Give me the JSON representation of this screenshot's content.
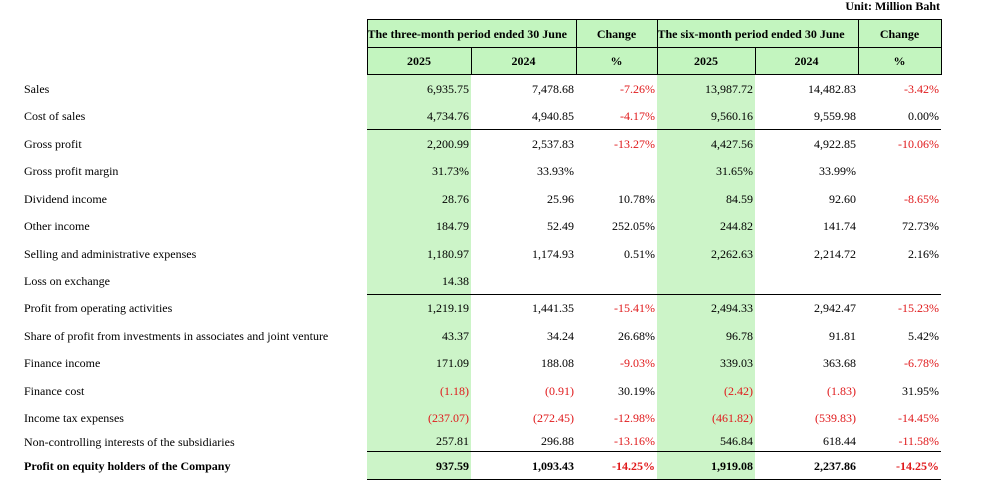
{
  "unit": "Unit: Million Baht",
  "header": {
    "three_month": "The three-month period ended 30 June",
    "six_month": "The six-month period ended 30 June",
    "change": "Change",
    "y1": "2025",
    "y2": "2024",
    "pct": "%"
  },
  "rows": [
    {
      "label": "Sales",
      "v": [
        "6,935.75",
        "7,478.68",
        "-7.26%",
        "13,987.72",
        "14,482.83",
        "-3.42%"
      ]
    },
    {
      "label": "Cost of sales",
      "v": [
        "4,734.76",
        "4,940.85",
        "-4.17%",
        "9,560.16",
        "9,559.98",
        "0.00%"
      ]
    },
    {
      "label": "Gross profit",
      "v": [
        "2,200.99",
        "2,537.83",
        "-13.27%",
        "4,427.56",
        "4,922.85",
        "-10.06%"
      ]
    },
    {
      "label": "Gross profit margin",
      "v": [
        "31.73%",
        "33.93%",
        "",
        "31.65%",
        "33.99%",
        ""
      ]
    },
    {
      "label": "Dividend income",
      "v": [
        "28.76",
        "25.96",
        "10.78%",
        "84.59",
        "92.60",
        "-8.65%"
      ]
    },
    {
      "label": "Other income",
      "v": [
        "184.79",
        "52.49",
        "252.05%",
        "244.82",
        "141.74",
        "72.73%"
      ]
    },
    {
      "label": "Selling and administrative expenses",
      "v": [
        "1,180.97",
        "1,174.93",
        "0.51%",
        "2,262.63",
        "2,214.72",
        "2.16%"
      ]
    },
    {
      "label": "Loss on exchange",
      "v": [
        "14.38",
        "",
        "",
        "",
        "",
        ""
      ]
    },
    {
      "label": "Profit from operating activities",
      "v": [
        "1,219.19",
        "1,441.35",
        "-15.41%",
        "2,494.33",
        "2,942.47",
        "-15.23%"
      ]
    },
    {
      "label": "Share of profit from investments in associates and joint venture",
      "v": [
        "43.37",
        "34.24",
        "26.68%",
        "96.78",
        "91.81",
        "5.42%"
      ]
    },
    {
      "label": "Finance income",
      "v": [
        "171.09",
        "188.08",
        "-9.03%",
        "339.03",
        "363.68",
        "-6.78%"
      ]
    },
    {
      "label": "Finance cost",
      "v": [
        "(1.18)",
        "(0.91)",
        "30.19%",
        "(2.42)",
        "(1.83)",
        "31.95%"
      ]
    },
    {
      "label": "Income tax expenses",
      "v": [
        "(237.07)",
        "(272.45)",
        "-12.98%",
        "(461.82)",
        "(539.83)",
        "-14.45%"
      ]
    },
    {
      "label": "Non-controlling interests of the subsidiaries",
      "v": [
        "257.81",
        "296.88",
        "-13.16%",
        "546.84",
        "618.44",
        "-11.58%"
      ]
    },
    {
      "label": "Profit on equity holders of the Company",
      "v": [
        "937.59",
        "1,093.43",
        "-14.25%",
        "1,919.08",
        "2,237.86",
        "-14.25%"
      ]
    }
  ],
  "colors": {
    "highlight": "#ccf4c8",
    "negative": "#e0191b"
  }
}
